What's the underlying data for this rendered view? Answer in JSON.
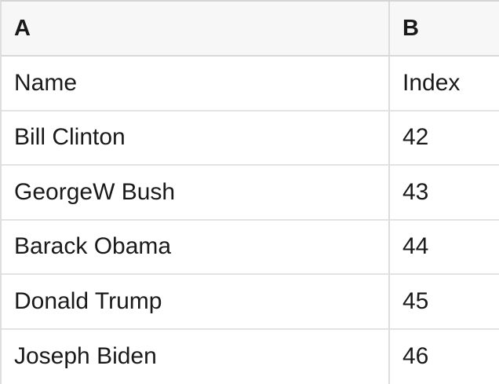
{
  "spreadsheet": {
    "column_headers": [
      "A",
      "B"
    ],
    "rows": [
      {
        "cells": [
          "Name",
          "Index"
        ]
      },
      {
        "cells": [
          "Bill Clinton",
          "42"
        ]
      },
      {
        "cells": [
          "GeorgeW Bush",
          "43"
        ]
      },
      {
        "cells": [
          "Barack Obama",
          "44"
        ]
      },
      {
        "cells": [
          "Donald Trump",
          "45"
        ]
      },
      {
        "cells": [
          "Joseph Biden",
          "46"
        ]
      }
    ],
    "colors": {
      "header_background": "#f7f7f7",
      "outer_border": "#d5d5d5",
      "row_divider": "#e3e3e3",
      "column_divider": "#dcdcdc",
      "text": "#1a1a1a"
    }
  }
}
